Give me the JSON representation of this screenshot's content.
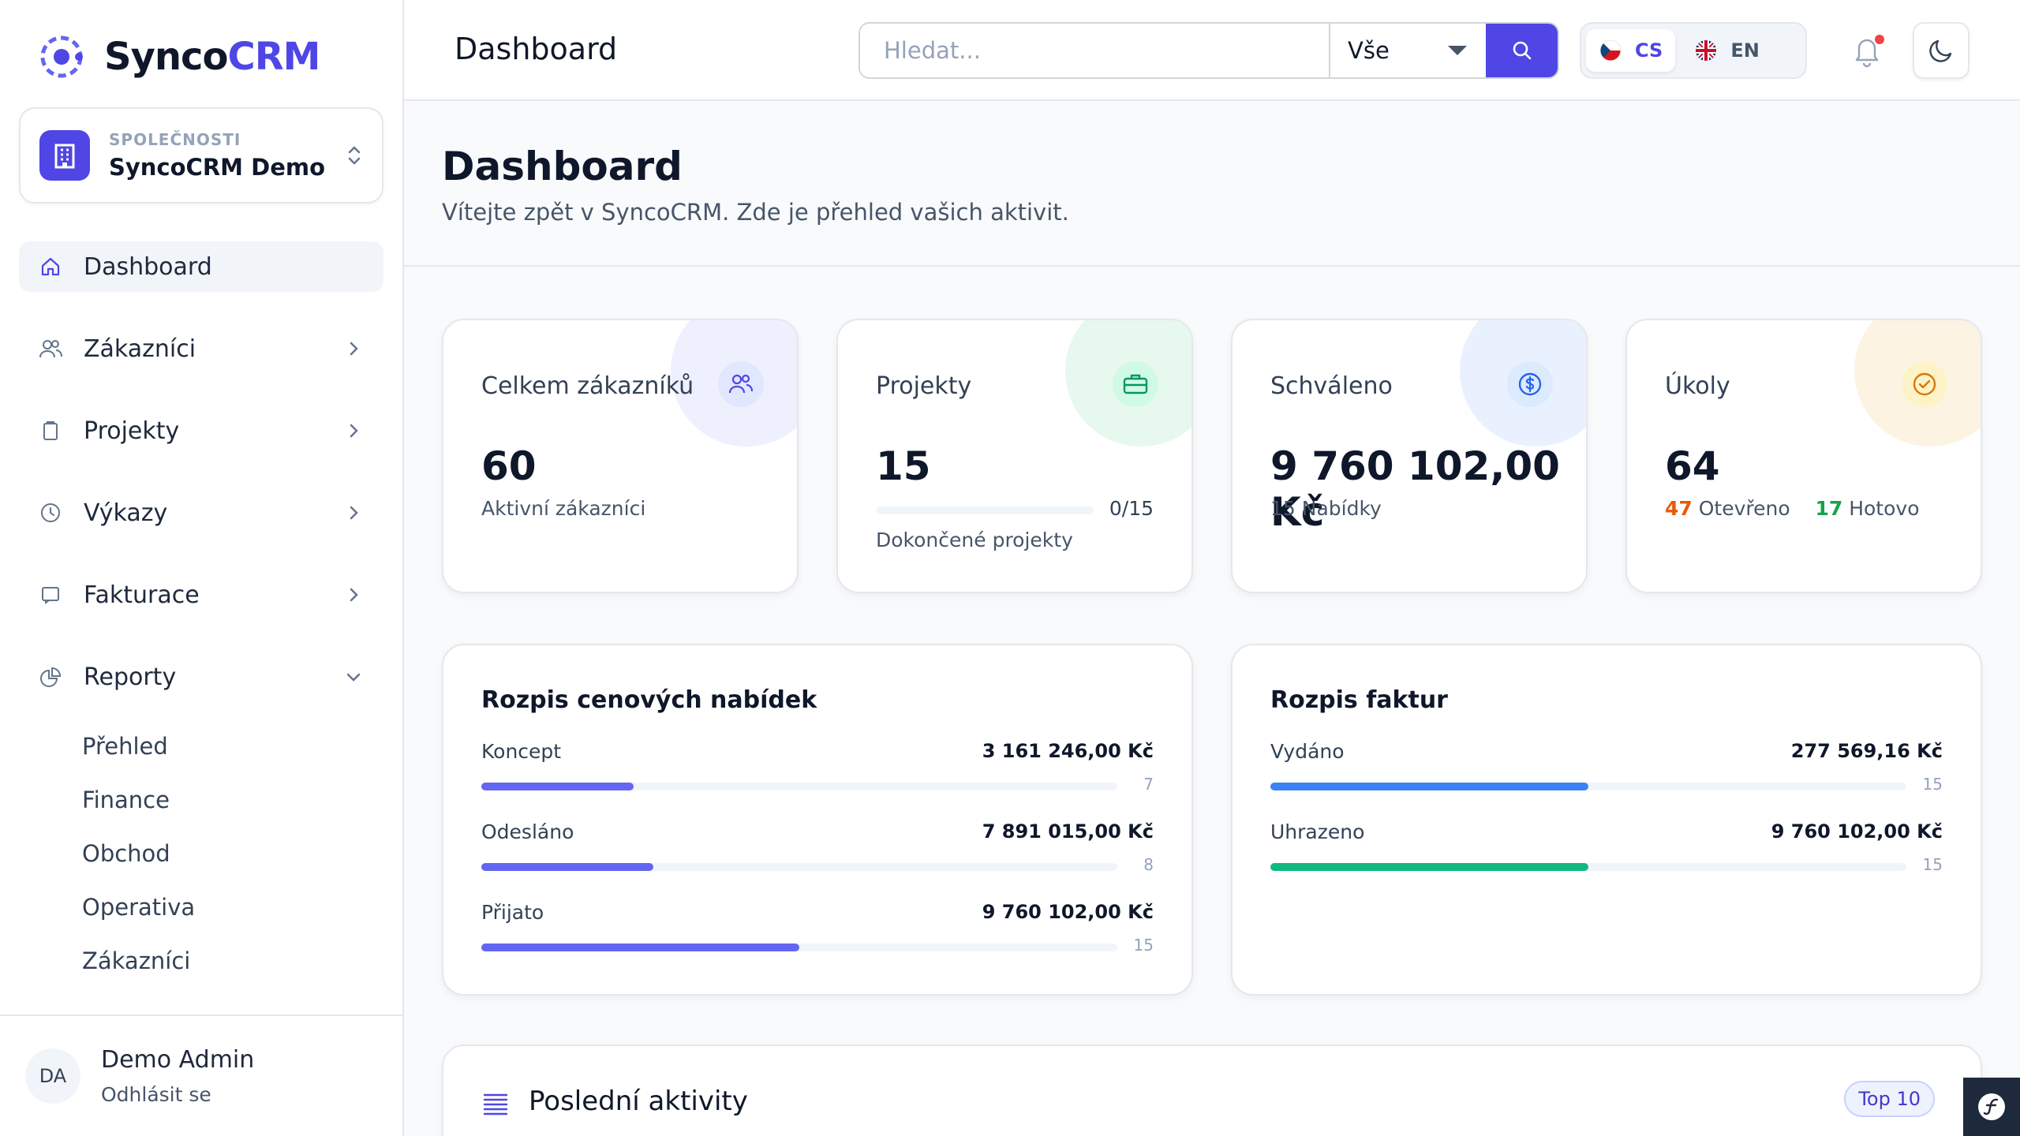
{
  "brand": {
    "name_part1": "Synco",
    "name_part2": "CRM"
  },
  "company": {
    "label": "SPOLEČNOSTI",
    "name": "SyncoCRM Demo"
  },
  "nav": {
    "dashboard": "Dashboard",
    "customers": "Zákazníci",
    "projects": "Projekty",
    "reports_time": "Výkazy",
    "invoicing": "Fakturace",
    "reports": "Reporty",
    "reports_sub": [
      "Přehled",
      "Finance",
      "Obchod",
      "Operativa",
      "Zákazníci"
    ]
  },
  "user": {
    "initials": "DA",
    "name": "Demo Admin",
    "logout": "Odhlásit se"
  },
  "topbar": {
    "title": "Dashboard",
    "search_placeholder": "Hledat...",
    "search_scope": "Vše",
    "lang_cs": "CS",
    "lang_en": "EN"
  },
  "header": {
    "title": "Dashboard",
    "subtitle": "Vítejte zpět v SyncoCRM. Zde je přehled vašich aktivit."
  },
  "stats": {
    "customers": {
      "label": "Celkem zákazníků",
      "value": "60",
      "sub": "Aktivní zákazníci"
    },
    "projects": {
      "label": "Projekty",
      "value": "15",
      "progress_text": "0/15",
      "progress": 0,
      "sub": "Dokončené projekty"
    },
    "approved": {
      "label": "Schváleno",
      "value": "9 760 102,00 Kč",
      "sub": "15 Nabídky"
    },
    "tasks": {
      "label": "Úkoly",
      "value": "64",
      "open_count": "47",
      "open_label": "Otevřeno",
      "done_count": "17",
      "done_label": "Hotovo"
    }
  },
  "quotes": {
    "title": "Rozpis cenových nabídek",
    "rows": [
      {
        "label": "Koncept",
        "amount": "3 161 246,00 Kč",
        "count": "7",
        "fill": 0.24
      },
      {
        "label": "Odesláno",
        "amount": "7 891 015,00 Kč",
        "count": "8",
        "fill": 0.27
      },
      {
        "label": "Přijato",
        "amount": "9 760 102,00 Kč",
        "count": "15",
        "fill": 0.5
      }
    ]
  },
  "invoices": {
    "title": "Rozpis faktur",
    "rows": [
      {
        "label": "Vydáno",
        "amount": "277 569,16 Kč",
        "count": "15",
        "fill": 0.5
      },
      {
        "label": "Uhrazeno",
        "amount": "9 760 102,00 Kč",
        "count": "15",
        "fill": 0.5
      }
    ]
  },
  "activities": {
    "title": "Poslední aktivity",
    "badge": "Top 10"
  },
  "colors": {
    "accent": "#4f46e5",
    "quote_bar": "#6366f1",
    "invoice_issued": "#3b82f6",
    "invoice_paid": "#10b981"
  }
}
